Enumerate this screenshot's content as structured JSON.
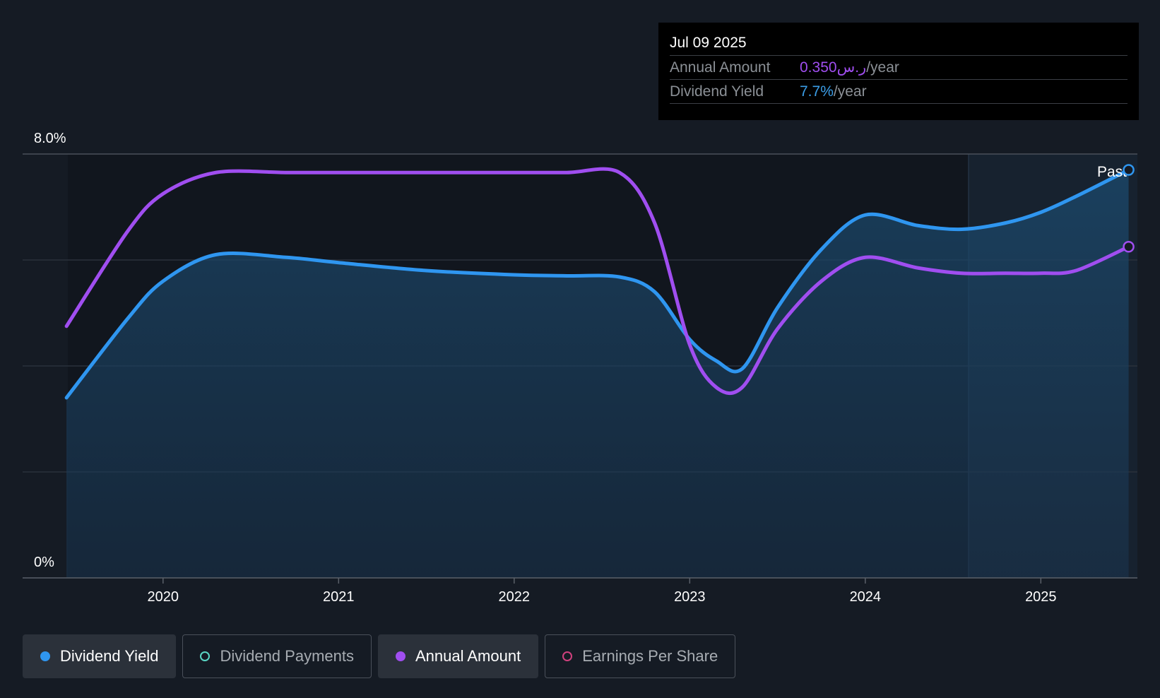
{
  "tooltip": {
    "date": "Jul 09 2025",
    "rows": [
      {
        "label": "Annual Amount",
        "value": "0.350ر.س",
        "unit": "/year",
        "color": "#a04ef0"
      },
      {
        "label": "Dividend Yield",
        "value": "7.7%",
        "unit": "/year",
        "color": "#3b9ee8"
      }
    ]
  },
  "past_label": "Past",
  "legend": [
    {
      "label": "Dividend Yield",
      "active": true,
      "filled": true,
      "color": "#2f96f0"
    },
    {
      "label": "Dividend Payments",
      "active": false,
      "filled": false,
      "color": "#5ad6c4"
    },
    {
      "label": "Annual Amount",
      "active": true,
      "filled": true,
      "color": "#a04ef0"
    },
    {
      "label": "Earnings Per Share",
      "active": false,
      "filled": false,
      "color": "#d0417e"
    }
  ],
  "colors": {
    "dividend_yield": "#2f96f0",
    "annual_amount": "#a04ef0",
    "background": "#151b24"
  },
  "chart_data": {
    "type": "line",
    "y_tick_labels": [
      "8.0%",
      "0%"
    ],
    "ylim": [
      0,
      8.0
    ],
    "xlim": [
      2019.2,
      2025.55
    ],
    "x_ticks": [
      2020,
      2021,
      2022,
      2023,
      2024,
      2025
    ],
    "x_tick_labels": [
      "2020",
      "2021",
      "2022",
      "2023",
      "2024",
      "2025"
    ],
    "gridlines_y": [
      2,
      4,
      6,
      8
    ],
    "forecast_start": 2024.52,
    "series": [
      {
        "name": "Dividend Yield",
        "color": "#2f96f0",
        "area": true,
        "x": [
          2019.45,
          2019.8,
          2020.0,
          2020.3,
          2020.7,
          2021.0,
          2021.5,
          2022.0,
          2022.3,
          2022.6,
          2022.8,
          2023.0,
          2023.15,
          2023.3,
          2023.5,
          2023.75,
          2024.0,
          2024.3,
          2024.55,
          2024.8,
          2025.0,
          2025.2,
          2025.5
        ],
        "y": [
          3.4,
          4.9,
          5.6,
          6.1,
          6.05,
          5.95,
          5.8,
          5.72,
          5.7,
          5.68,
          5.4,
          4.5,
          4.1,
          3.95,
          5.1,
          6.2,
          6.85,
          6.65,
          6.58,
          6.7,
          6.9,
          7.2,
          7.7
        ]
      },
      {
        "name": "Annual Amount",
        "color": "#a04ef0",
        "area": false,
        "x": [
          2019.45,
          2019.8,
          2020.0,
          2020.3,
          2020.7,
          2021.0,
          2021.5,
          2022.0,
          2022.3,
          2022.6,
          2022.8,
          2023.0,
          2023.15,
          2023.3,
          2023.5,
          2023.75,
          2024.0,
          2024.3,
          2024.55,
          2024.8,
          2025.0,
          2025.2,
          2025.5
        ],
        "y": [
          4.75,
          6.55,
          7.25,
          7.65,
          7.65,
          7.65,
          7.65,
          7.65,
          7.65,
          7.65,
          6.7,
          4.4,
          3.6,
          3.6,
          4.7,
          5.6,
          6.05,
          5.85,
          5.75,
          5.75,
          5.75,
          5.8,
          6.25
        ]
      }
    ]
  }
}
